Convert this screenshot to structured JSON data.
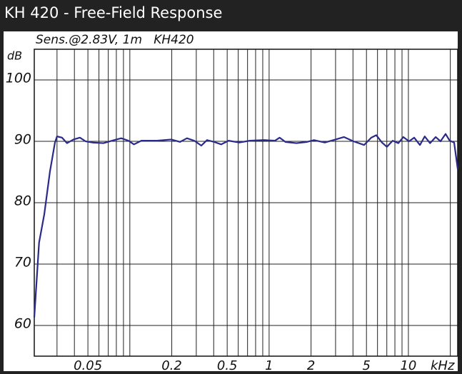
{
  "header": {
    "title": "KH 420 - Free-Field Response"
  },
  "chart_data": {
    "type": "line",
    "title": "Sens.@2.83V, 1m   KH420",
    "x_label": "kHz",
    "y_label": "dB",
    "x": [
      0.0206,
      0.0223,
      0.0243,
      0.0267,
      0.029,
      0.03,
      0.0326,
      0.0354,
      0.0394,
      0.0438,
      0.0481,
      0.0541,
      0.0646,
      0.0771,
      0.0867,
      0.0977,
      0.107,
      0.121,
      0.157,
      0.198,
      0.229,
      0.257,
      0.29,
      0.326,
      0.358,
      0.403,
      0.453,
      0.511,
      0.61,
      0.727,
      0.921,
      1.1,
      1.19,
      1.31,
      1.57,
      1.87,
      2.1,
      2.51,
      3.0,
      3.45,
      4.03,
      4.81,
      5.41,
      5.88,
      6.46,
      7.01,
      7.71,
      8.47,
      9.2,
      10.1,
      11.0,
      12.1,
      13.1,
      14.3,
      15.7,
      17.0,
      18.5,
      19.8,
      21.3,
      22.6
    ],
    "values": [
      61.3,
      73.5,
      78.1,
      85.1,
      89.8,
      90.8,
      90.6,
      89.7,
      90.3,
      90.6,
      90,
      89.8,
      89.7,
      90.2,
      90.5,
      90.1,
      89.5,
      90.1,
      90.1,
      90.3,
      89.9,
      90.5,
      90.1,
      89.3,
      90.2,
      89.9,
      89.5,
      90.1,
      89.8,
      90.1,
      90.2,
      90.1,
      90.6,
      89.9,
      89.7,
      89.9,
      90.2,
      89.8,
      90.3,
      90.7,
      90,
      89.4,
      90.6,
      91,
      89.8,
      89.1,
      90.1,
      89.7,
      90.7,
      90,
      90.6,
      89.4,
      90.8,
      89.7,
      90.7,
      90,
      91.2,
      90.1,
      89.8,
      85.5
    ],
    "color": "#2a2a8a",
    "xlog": true,
    "xlim": [
      0.0206,
      22.6
    ],
    "xticks": [
      0.05,
      0.2,
      0.5,
      1,
      2,
      5,
      10
    ],
    "x_minor_grid": [
      0.03,
      0.04,
      0.06,
      0.07,
      0.08,
      0.09,
      0.1,
      0.3,
      0.4,
      0.6,
      0.7,
      0.8,
      0.9,
      3,
      4,
      6,
      7,
      8,
      9,
      20
    ],
    "ylim": [
      55,
      105
    ],
    "yticks": [
      60,
      70,
      80,
      90,
      100
    ],
    "grid": true
  }
}
